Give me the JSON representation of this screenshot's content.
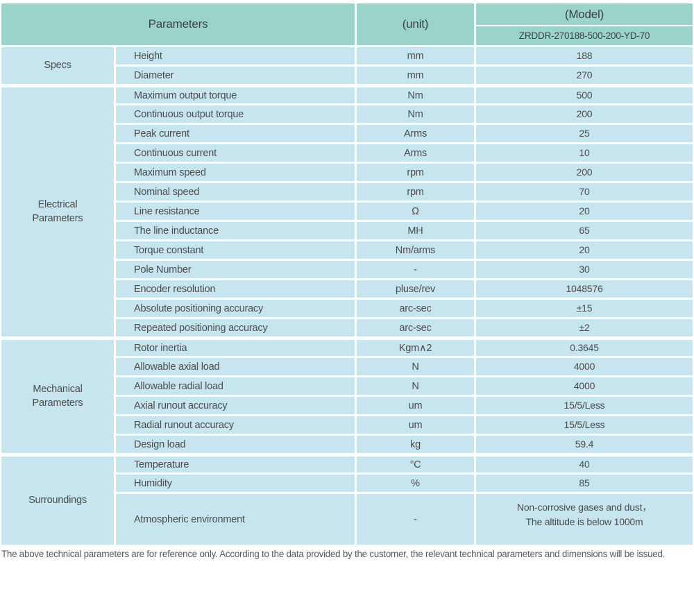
{
  "colors": {
    "header_bg": "#99d3ca",
    "body_bg": "#c6e5ee",
    "text": "#4c4c4c",
    "footnote": "#58595b"
  },
  "header": {
    "parameters_label": "Parameters",
    "unit_label": "(unit)",
    "model_label": "(Model)",
    "model_code": "ZRDDR-270188-500-200-YD-70"
  },
  "table": {
    "sections": [
      {
        "category": "Specs",
        "rows": [
          {
            "name": "Height",
            "unit": "mm",
            "value": "188"
          },
          {
            "name": "Diameter",
            "unit": "mm",
            "value": "270"
          }
        ]
      },
      {
        "category": "Electrical\nParameters",
        "rows": [
          {
            "name": "Maximum output torque",
            "unit": "Nm",
            "value": "500"
          },
          {
            "name": "Continuous output torque",
            "unit": "Nm",
            "value": "200"
          },
          {
            "name": "Peak current",
            "unit": "Arms",
            "value": "25"
          },
          {
            "name": "Continuous current",
            "unit": "Arms",
            "value": "10"
          },
          {
            "name": "Maximum speed",
            "unit": "rpm",
            "value": "200"
          },
          {
            "name": "Nominal speed",
            "unit": "rpm",
            "value": "70"
          },
          {
            "name": "Line resistance",
            "unit": "Ω",
            "value": "20"
          },
          {
            "name": "The line inductance",
            "unit": "MH",
            "value": "65"
          },
          {
            "name": "Torque constant",
            "unit": "Nm/arms",
            "value": "20"
          },
          {
            "name": "Pole Number",
            "unit": "-",
            "value": "30"
          },
          {
            "name": "Encoder resolution",
            "unit": "pluse/rev",
            "value": "1048576"
          },
          {
            "name": "Absolute positioning accuracy",
            "unit": "arc-sec",
            "value": "±15"
          },
          {
            "name": "Repeated positioning accuracy",
            "unit": "arc-sec",
            "value": "±2"
          }
        ]
      },
      {
        "category": "Mechanical\nParameters",
        "rows": [
          {
            "name": "Rotor inertia",
            "unit": "Kgm∧2",
            "value": "0.3645"
          },
          {
            "name": "Allowable axial load",
            "unit": "N",
            "value": "4000"
          },
          {
            "name": "Allowable radial load",
            "unit": "N",
            "value": "4000"
          },
          {
            "name": "Axial runout accuracy",
            "unit": "um",
            "value": "15/5/Less"
          },
          {
            "name": "Radial runout accuracy",
            "unit": "um",
            "value": "15/5/Less"
          },
          {
            "name": "Design load",
            "unit": "kg",
            "value": "59.4"
          }
        ]
      },
      {
        "category": "Surroundings",
        "rows": [
          {
            "name": "Temperature",
            "unit": "°C",
            "value": "40"
          },
          {
            "name": "Humidity",
            "unit": "%",
            "value": "85"
          },
          {
            "name": "Atmospheric environment",
            "unit": "-",
            "value": "Non-corrosive gases and dust，\nThe altitude is below 1000m",
            "tall": true
          }
        ]
      }
    ]
  },
  "footnote": "The above technical parameters are for reference only. According to the data provided by the customer, the relevant technical parameters and dimensions will be issued."
}
